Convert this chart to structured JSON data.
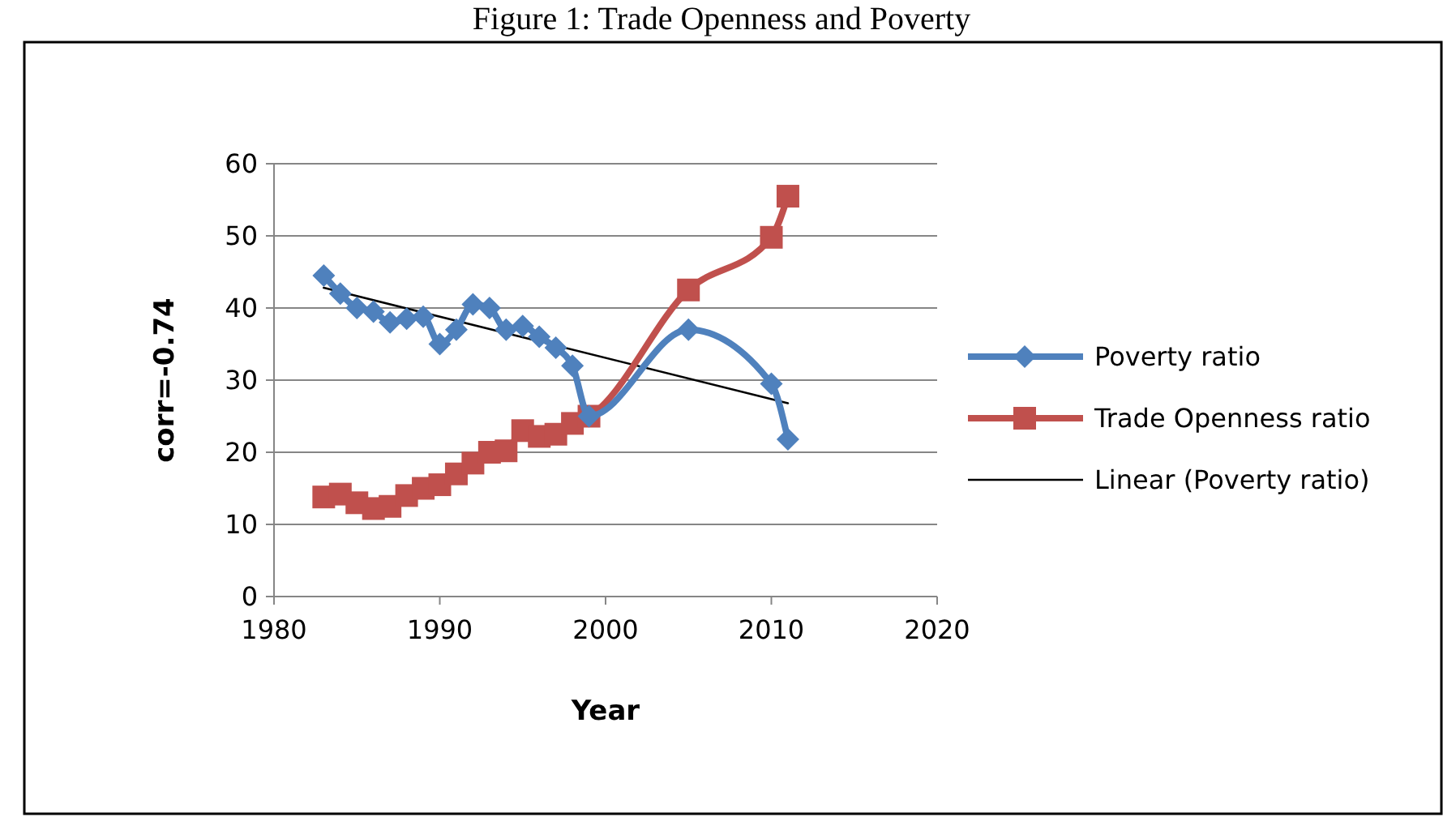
{
  "chart_data": {
    "type": "line",
    "title": "Figure 1: Trade Openness and Poverty",
    "xlabel": "Year",
    "ylabel": "corr=-0.74",
    "xlim": [
      1980,
      2020
    ],
    "xticks": [
      1980,
      1990,
      2000,
      2010,
      2020
    ],
    "ylim": [
      0,
      60
    ],
    "yticks": [
      0,
      10,
      20,
      30,
      40,
      50,
      60
    ],
    "grid": "y",
    "legend": "right",
    "series": [
      {
        "name": "Poverty ratio",
        "color": "#4f81bd",
        "marker": "diamond",
        "x": [
          1983,
          1984,
          1985,
          1986,
          1987,
          1988,
          1989,
          1990,
          1991,
          1992,
          1993,
          1994,
          1995,
          1996,
          1997,
          1998,
          1999,
          2005,
          2010,
          2011
        ],
        "values": [
          44.5,
          42,
          40,
          39.5,
          38,
          38.5,
          38.8,
          35,
          37,
          40.5,
          40,
          37,
          37.5,
          36,
          34.5,
          32,
          25,
          37,
          29.5,
          21.8
        ]
      },
      {
        "name": "Trade Openness ratio",
        "color": "#c0504d",
        "marker": "square",
        "x": [
          1983,
          1984,
          1985,
          1986,
          1987,
          1988,
          1989,
          1990,
          1991,
          1992,
          1993,
          1994,
          1995,
          1996,
          1997,
          1998,
          1999,
          2005,
          2010,
          2011
        ],
        "values": [
          13.8,
          14.2,
          13,
          12.2,
          12.5,
          14,
          15,
          15.5,
          17,
          18.5,
          20,
          20.2,
          23,
          22.2,
          22.5,
          24,
          25,
          42.5,
          49.8,
          55.5
        ]
      },
      {
        "name": "Linear (Poverty ratio)",
        "color": "#000000",
        "marker": "none",
        "x": [
          1983,
          2011
        ],
        "values": [
          42.8,
          26.8
        ]
      }
    ]
  }
}
